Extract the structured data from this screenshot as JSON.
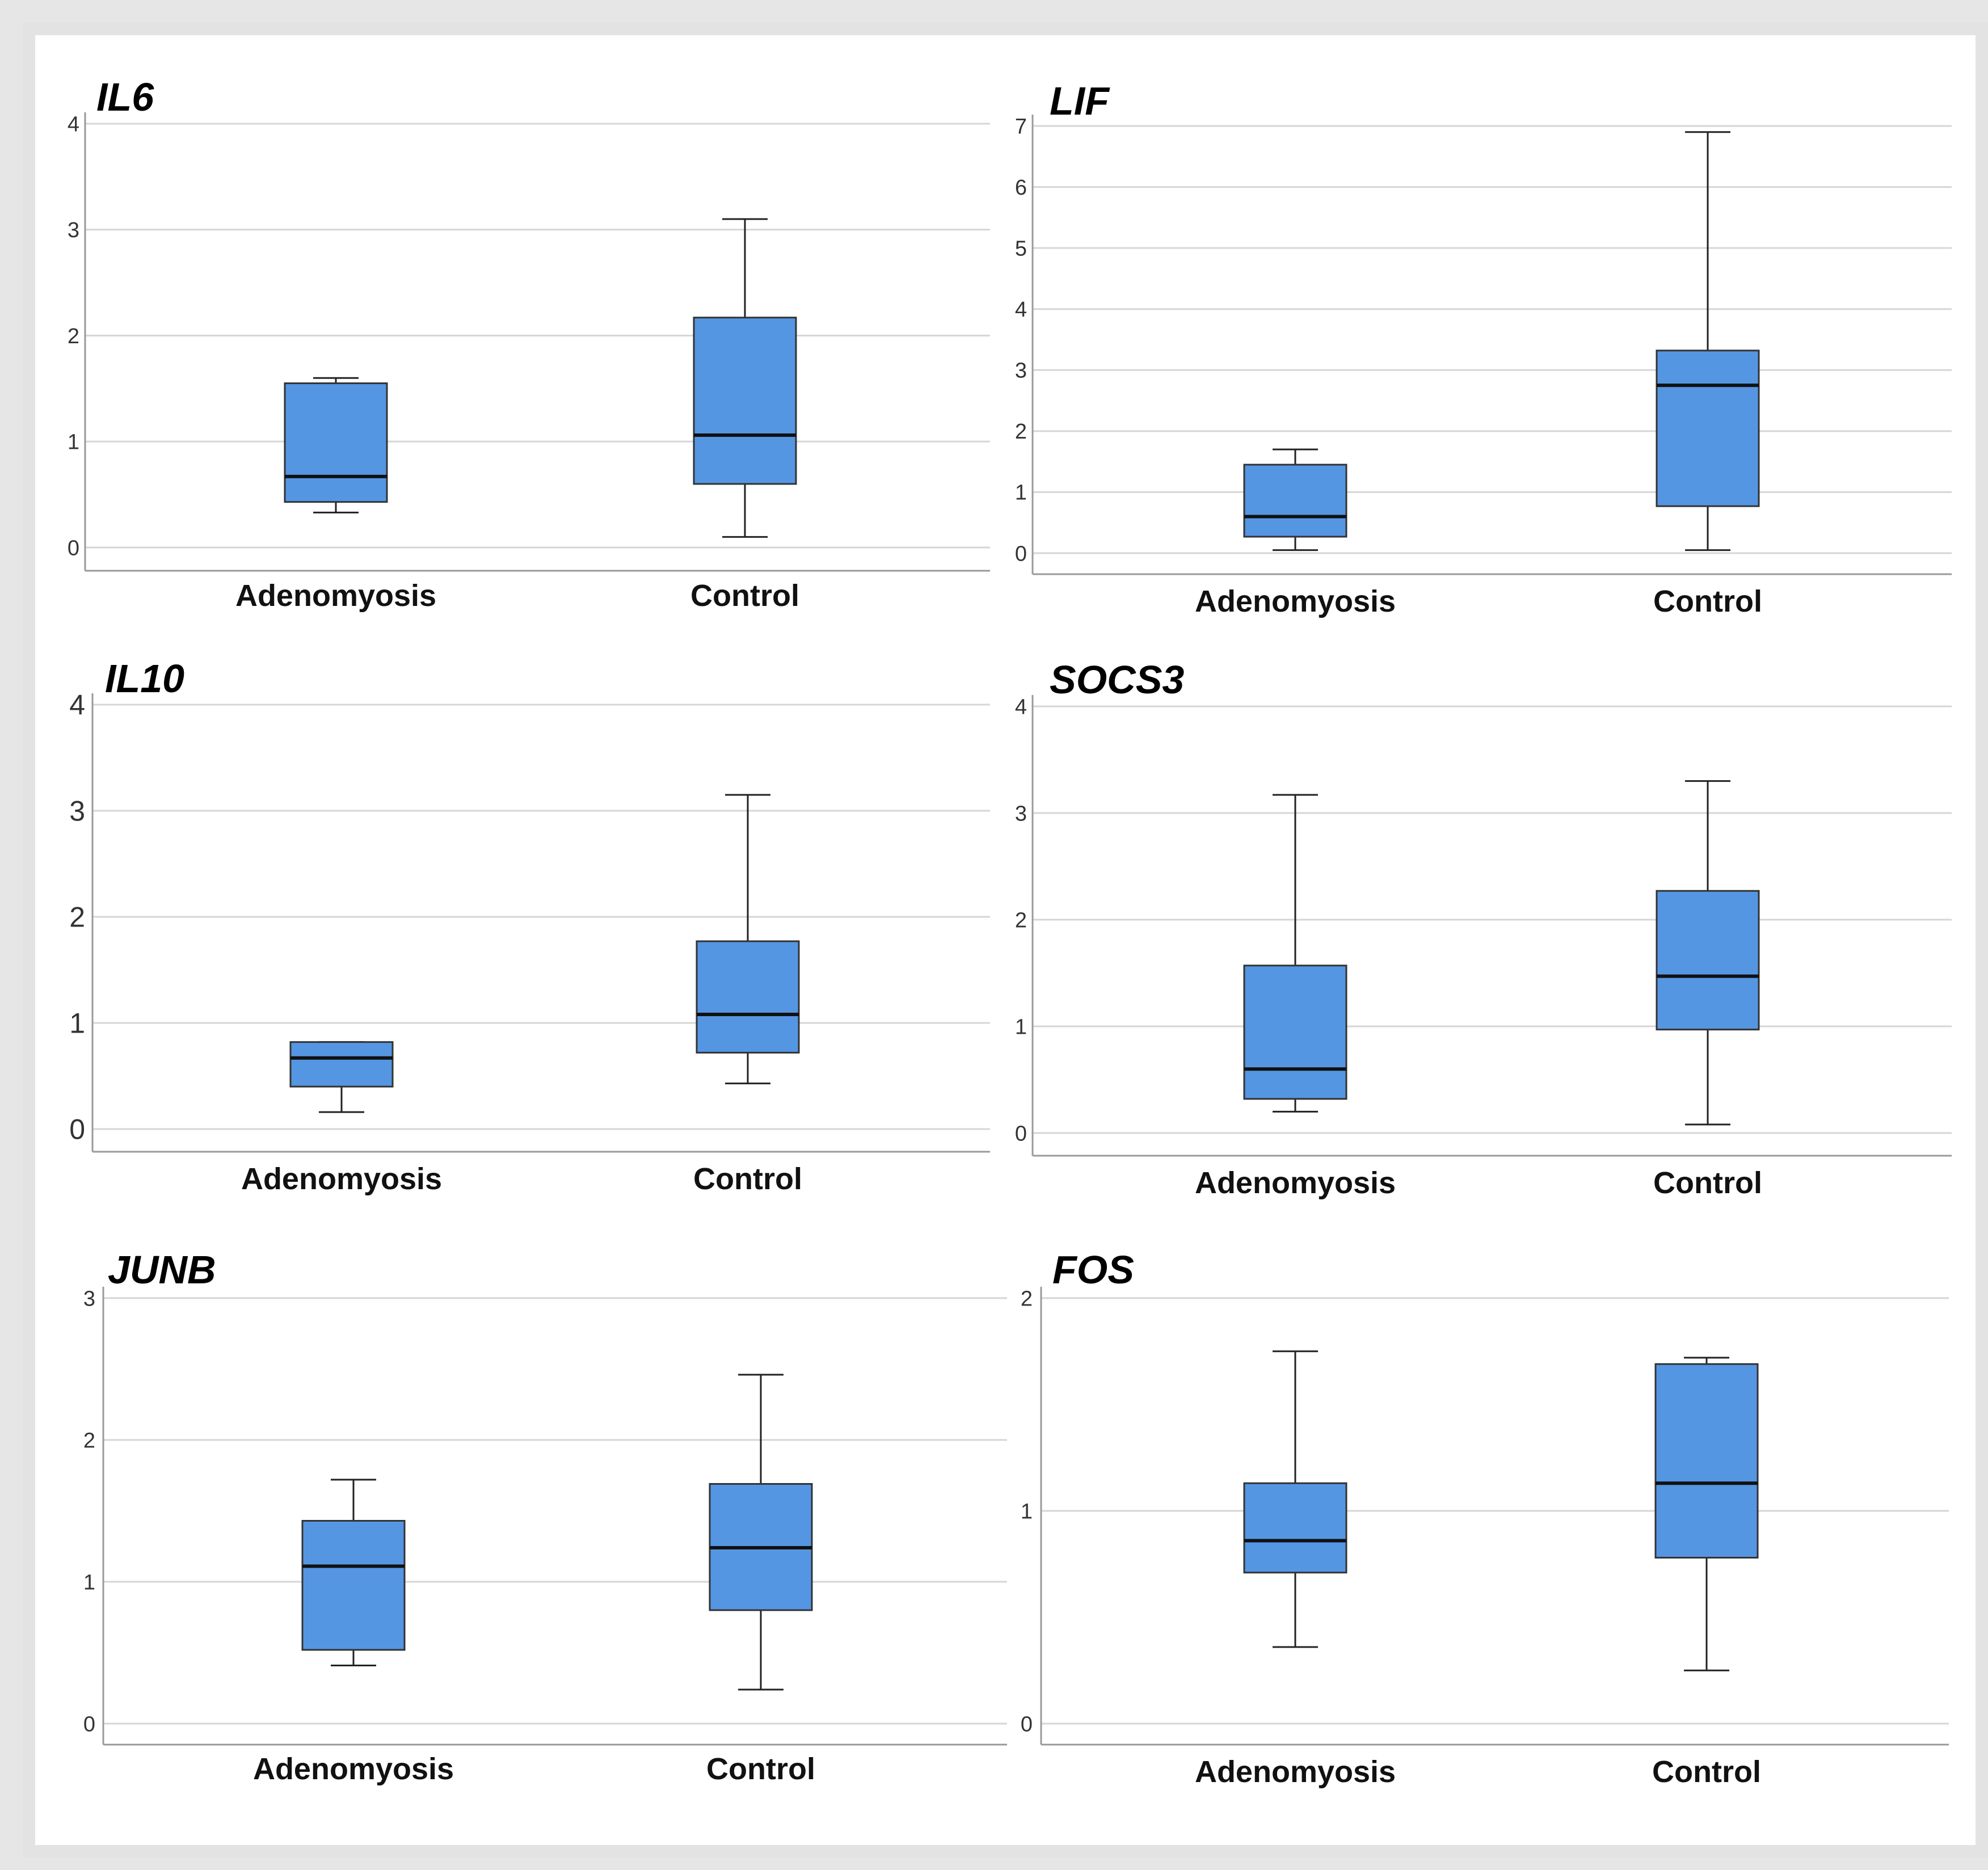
{
  "chart_data": [
    {
      "type": "box",
      "title": "IL6",
      "categories": [
        "Adenomyosis",
        "Control"
      ],
      "ylim": [
        0,
        4
      ],
      "yticks": [
        "0",
        "1",
        "2",
        "3",
        "4"
      ],
      "grid": true,
      "box_color": "#5596e3",
      "boxes": [
        {
          "whisker_low": 0.33,
          "q1": 0.43,
          "median": 0.67,
          "q3": 1.55,
          "whisker_high": 1.6
        },
        {
          "whisker_low": 0.1,
          "q1": 0.6,
          "median": 1.06,
          "q3": 2.17,
          "whisker_high": 3.1
        }
      ]
    },
    {
      "type": "box",
      "title": "LIF",
      "categories": [
        "Adenomyosis",
        "Control"
      ],
      "ylim": [
        0,
        7
      ],
      "yticks": [
        "0",
        "1",
        "2",
        "3",
        "4",
        "5",
        "6",
        "7"
      ],
      "grid": true,
      "box_color": "#5596e3",
      "boxes": [
        {
          "whisker_low": 0.05,
          "q1": 0.27,
          "median": 0.6,
          "q3": 1.45,
          "whisker_high": 1.7
        },
        {
          "whisker_low": 0.05,
          "q1": 0.77,
          "median": 2.75,
          "q3": 3.32,
          "whisker_high": 6.9
        }
      ]
    },
    {
      "type": "box",
      "title": "IL10",
      "categories": [
        "Adenomyosis",
        "Control"
      ],
      "ylim": [
        0,
        4
      ],
      "yticks": [
        "0",
        "1",
        "2",
        "3",
        "4"
      ],
      "grid": true,
      "box_color": "#5596e3",
      "boxes": [
        {
          "whisker_low": 0.16,
          "q1": 0.4,
          "median": 0.67,
          "q3": 0.82,
          "whisker_high": 0.82
        },
        {
          "whisker_low": 0.43,
          "q1": 0.72,
          "median": 1.08,
          "q3": 1.77,
          "whisker_high": 3.15
        }
      ]
    },
    {
      "type": "box",
      "title": "SOCS3",
      "categories": [
        "Adenomyosis",
        "Control"
      ],
      "ylim": [
        0,
        4
      ],
      "yticks": [
        "0",
        "1",
        "2",
        "3",
        "4"
      ],
      "grid": true,
      "box_color": "#5596e3",
      "boxes": [
        {
          "whisker_low": 0.2,
          "q1": 0.32,
          "median": 0.6,
          "q3": 1.57,
          "whisker_high": 3.17
        },
        {
          "whisker_low": 0.08,
          "q1": 0.97,
          "median": 1.47,
          "q3": 2.27,
          "whisker_high": 3.3
        }
      ]
    },
    {
      "type": "box",
      "title": "JUNB",
      "categories": [
        "Adenomyosis",
        "Control"
      ],
      "ylim": [
        0,
        3
      ],
      "yticks": [
        "0",
        "1",
        "2",
        "3"
      ],
      "grid": true,
      "box_color": "#5596e3",
      "boxes": [
        {
          "whisker_low": 0.41,
          "q1": 0.52,
          "median": 1.11,
          "q3": 1.43,
          "whisker_high": 1.72
        },
        {
          "whisker_low": 0.24,
          "q1": 0.8,
          "median": 1.24,
          "q3": 1.69,
          "whisker_high": 2.46
        }
      ]
    },
    {
      "type": "box",
      "title": "FOS",
      "categories": [
        "Adenomyosis",
        "Control"
      ],
      "ylim": [
        0,
        2
      ],
      "yticks": [
        "0",
        "1",
        "2"
      ],
      "grid": true,
      "box_color": "#5596e3",
      "boxes": [
        {
          "whisker_low": 0.36,
          "q1": 0.71,
          "median": 0.86,
          "q3": 1.13,
          "whisker_high": 1.75
        },
        {
          "whisker_low": 0.25,
          "q1": 0.78,
          "median": 1.13,
          "q3": 1.69,
          "whisker_high": 1.72
        }
      ]
    }
  ]
}
